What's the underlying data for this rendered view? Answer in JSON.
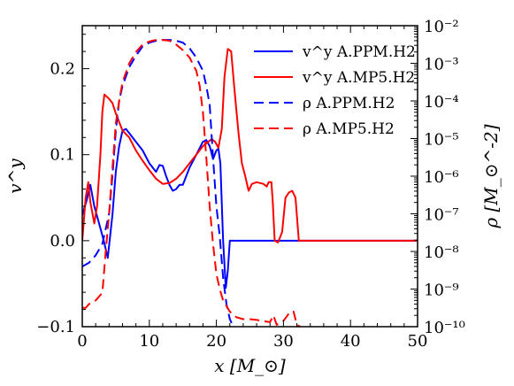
{
  "chart_data": {
    "type": "line",
    "xlabel": "x [M_⊙]",
    "ylabel_left": "v^y",
    "ylabel_right": "ρ [M_⊙^-2]",
    "xlim": [
      0,
      50
    ],
    "ylim_left": [
      -0.1,
      0.25
    ],
    "ylim_right_log10": [
      -10,
      -2
    ],
    "x_ticks": [
      "0",
      "10",
      "20",
      "30",
      "40",
      "50"
    ],
    "y_left_ticks": [
      "−0.1",
      "0.0",
      "0.1",
      "0.2"
    ],
    "y_right_ticks": [
      "10⁻¹⁰",
      "10⁻⁹",
      "10⁻⁸",
      "10⁻⁷",
      "10⁻⁶",
      "10⁻⁵",
      "10⁻⁴",
      "10⁻³",
      "10⁻²"
    ],
    "legend_position": "top-right",
    "series": [
      {
        "name": "v^y A.PPM.H2",
        "axis": "left",
        "color": "#0000ff",
        "dash": "solid",
        "points": [
          [
            0,
            0.03
          ],
          [
            0.6,
            0.045
          ],
          [
            1.2,
            0.065
          ],
          [
            1.8,
            0.04
          ],
          [
            2.5,
            0.02
          ],
          [
            3.2,
            0.0
          ],
          [
            3.8,
            -0.02
          ],
          [
            4.5,
            0.03
          ],
          [
            5,
            0.08
          ],
          [
            5.5,
            0.11
          ],
          [
            6,
            0.128
          ],
          [
            6.5,
            0.13
          ],
          [
            7,
            0.125
          ],
          [
            8,
            0.115
          ],
          [
            9,
            0.105
          ],
          [
            10,
            0.09
          ],
          [
            11,
            0.08
          ],
          [
            11.5,
            0.088
          ],
          [
            12,
            0.087
          ],
          [
            12.5,
            0.075
          ],
          [
            13,
            0.065
          ],
          [
            13.5,
            0.058
          ],
          [
            14,
            0.06
          ],
          [
            14.5,
            0.065
          ],
          [
            15,
            0.065
          ],
          [
            15.5,
            0.075
          ],
          [
            16,
            0.085
          ],
          [
            17,
            0.1
          ],
          [
            18,
            0.115
          ],
          [
            18.5,
            0.117
          ],
          [
            19,
            0.11
          ],
          [
            19.5,
            0.095
          ],
          [
            20,
            0.105
          ],
          [
            20.3,
            0.107
          ],
          [
            20.6,
            0.09
          ],
          [
            21,
            0.0
          ],
          [
            21.4,
            -0.055
          ],
          [
            21.7,
            -0.035
          ],
          [
            22,
            0.0
          ],
          [
            50,
            0.0
          ]
        ]
      },
      {
        "name": "v^y A.MP5.H2",
        "axis": "left",
        "color": "#ff0000",
        "dash": "solid",
        "points": [
          [
            0,
            0.0
          ],
          [
            0.5,
            0.05
          ],
          [
            0.9,
            0.068
          ],
          [
            1.2,
            0.045
          ],
          [
            1.8,
            0.02
          ],
          [
            2.2,
            0.04
          ],
          [
            2.7,
            0.1
          ],
          [
            3,
            0.15
          ],
          [
            3.3,
            0.17
          ],
          [
            4,
            0.165
          ],
          [
            4.5,
            0.16
          ],
          [
            5,
            0.148
          ],
          [
            6,
            0.128
          ],
          [
            7,
            0.12
          ],
          [
            8,
            0.105
          ],
          [
            9,
            0.093
          ],
          [
            10,
            0.082
          ],
          [
            11,
            0.072
          ],
          [
            12,
            0.066
          ],
          [
            13,
            0.067
          ],
          [
            14,
            0.072
          ],
          [
            15,
            0.08
          ],
          [
            16,
            0.09
          ],
          [
            17,
            0.1
          ],
          [
            18,
            0.11
          ],
          [
            18.8,
            0.115
          ],
          [
            19.3,
            0.118
          ],
          [
            19.8,
            0.115
          ],
          [
            20.3,
            0.108
          ],
          [
            20.8,
            0.13
          ],
          [
            21.2,
            0.19
          ],
          [
            21.7,
            0.223
          ],
          [
            22.2,
            0.22
          ],
          [
            22.7,
            0.175
          ],
          [
            23.3,
            0.125
          ],
          [
            23.8,
            0.09
          ],
          [
            24.3,
            0.075
          ],
          [
            24.8,
            0.058
          ],
          [
            25.3,
            0.066
          ],
          [
            26,
            0.068
          ],
          [
            27,
            0.066
          ],
          [
            27.5,
            0.063
          ],
          [
            27.8,
            0.068
          ],
          [
            28.2,
            0.068
          ],
          [
            28.4,
            0.045
          ],
          [
            28.7,
            0.0
          ],
          [
            29.2,
            -0.002
          ],
          [
            29.8,
            0.01
          ],
          [
            30.3,
            0.05
          ],
          [
            30.8,
            0.056
          ],
          [
            31.3,
            0.058
          ],
          [
            31.8,
            0.05
          ],
          [
            32.3,
            0.0
          ],
          [
            50,
            0.0
          ]
        ]
      },
      {
        "name": "ρ A.PPM.H2",
        "axis": "right_log10",
        "color": "#0000ff",
        "dash": "dashed",
        "points": [
          [
            0,
            -8.4
          ],
          [
            1,
            -8.3
          ],
          [
            2,
            -8.1
          ],
          [
            3,
            -7.8
          ],
          [
            4,
            -7.0
          ],
          [
            4.5,
            -6.0
          ],
          [
            5,
            -4.8
          ],
          [
            5.5,
            -4.0
          ],
          [
            6,
            -3.6
          ],
          [
            7,
            -3.1
          ],
          [
            8,
            -2.8
          ],
          [
            9,
            -2.55
          ],
          [
            10,
            -2.45
          ],
          [
            11,
            -2.4
          ],
          [
            12,
            -2.38
          ],
          [
            13,
            -2.38
          ],
          [
            14,
            -2.4
          ],
          [
            15,
            -2.45
          ],
          [
            16,
            -2.6
          ],
          [
            17,
            -2.85
          ],
          [
            18,
            -3.2
          ],
          [
            18.5,
            -3.6
          ],
          [
            19,
            -4.1
          ],
          [
            19.5,
            -5.5
          ],
          [
            20,
            -6.8
          ],
          [
            20.5,
            -7.6
          ],
          [
            21,
            -8.7
          ],
          [
            21.5,
            -9.4
          ],
          [
            22,
            -9.8
          ],
          [
            22.5,
            -10.0
          ]
        ]
      },
      {
        "name": "ρ A.MP5.H2",
        "axis": "right_log10",
        "color": "#ff0000",
        "dash": "dashed",
        "points": [
          [
            0,
            -9.5
          ],
          [
            0.5,
            -9.5
          ],
          [
            1,
            -9.4
          ],
          [
            2,
            -9.3
          ],
          [
            3,
            -9.1
          ],
          [
            3.5,
            -8.0
          ],
          [
            4,
            -7.0
          ],
          [
            4.5,
            -5.8
          ],
          [
            5,
            -4.6
          ],
          [
            5.5,
            -4.0
          ],
          [
            6,
            -3.5
          ],
          [
            7,
            -3.0
          ],
          [
            8,
            -2.7
          ],
          [
            9,
            -2.5
          ],
          [
            10,
            -2.42
          ],
          [
            11,
            -2.38
          ],
          [
            12,
            -2.38
          ],
          [
            13,
            -2.4
          ],
          [
            14,
            -2.5
          ],
          [
            15,
            -2.65
          ],
          [
            16,
            -2.85
          ],
          [
            17,
            -3.2
          ],
          [
            17.5,
            -3.6
          ],
          [
            18,
            -4.3
          ],
          [
            18.5,
            -5.5
          ],
          [
            19,
            -6.8
          ],
          [
            19.5,
            -7.8
          ],
          [
            20,
            -8.6
          ],
          [
            20.5,
            -9.0
          ],
          [
            21,
            -9.3
          ],
          [
            22,
            -9.6
          ],
          [
            23,
            -9.75
          ],
          [
            24,
            -9.8
          ],
          [
            25,
            -9.8
          ],
          [
            26,
            -9.82
          ],
          [
            27,
            -9.85
          ],
          [
            28,
            -9.88
          ],
          [
            28.5,
            -9.7
          ],
          [
            29,
            -9.95
          ],
          [
            30,
            -9.85
          ],
          [
            31,
            -9.6
          ],
          [
            31.5,
            -9.6
          ],
          [
            32,
            -9.95
          ],
          [
            32.5,
            -10.0
          ]
        ]
      }
    ]
  }
}
